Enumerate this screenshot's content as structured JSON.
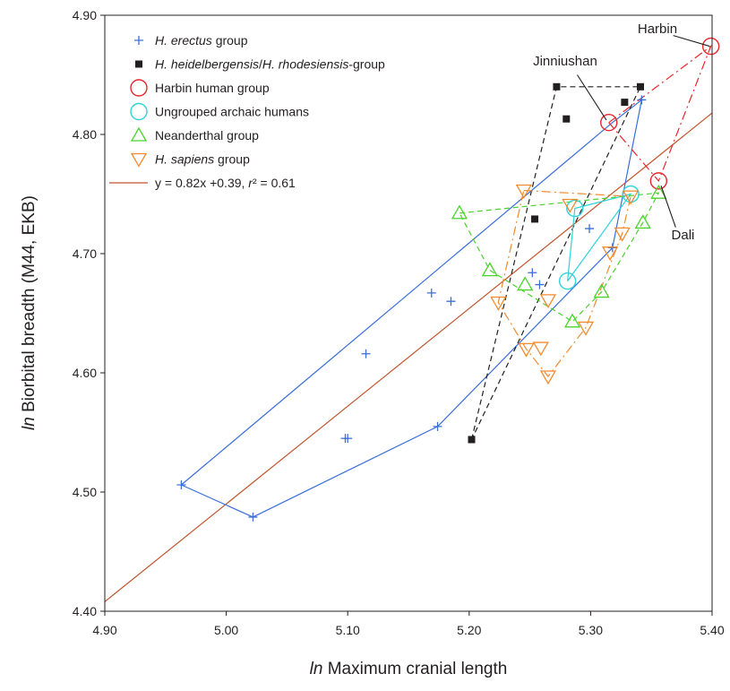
{
  "chart_data": {
    "type": "scatter",
    "xlabel_italic": "ln",
    "xlabel_rest": " Maximum cranial length",
    "ylabel_italic": "ln",
    "ylabel_rest": " Biorbital breadth (M44, EKB)",
    "xlim": [
      4.9,
      5.4
    ],
    "ylim": [
      4.4,
      4.9
    ],
    "x_ticks": [
      4.9,
      5.0,
      5.1,
      5.2,
      5.3,
      5.4
    ],
    "x_tick_labels": [
      "4.90",
      "5.00",
      "5.10",
      "5.20",
      "5.30",
      "5.40"
    ],
    "y_ticks": [
      4.4,
      4.5,
      4.6,
      4.7,
      4.8,
      4.9
    ],
    "y_tick_labels": [
      "4.40",
      "4.50",
      "4.60",
      "4.70",
      "4.80",
      "4.90"
    ],
    "grid": false,
    "legend_position": "top-left",
    "series": [
      {
        "name": "H. erectus group",
        "legend_parts": [
          {
            "t": "H. erectus",
            "i": true
          },
          {
            "t": " group",
            "i": false
          }
        ],
        "marker": "plus",
        "color": "#3a6fd8",
        "hull_style": "solid",
        "points": [
          [
            4.963,
            4.506
          ],
          [
            5.022,
            4.479
          ],
          [
            5.098,
            4.545
          ],
          [
            5.1,
            4.545
          ],
          [
            5.115,
            4.616
          ],
          [
            5.169,
            4.667
          ],
          [
            5.185,
            4.66
          ],
          [
            5.174,
            4.555
          ],
          [
            5.252,
            4.684
          ],
          [
            5.258,
            4.674
          ],
          [
            5.299,
            4.721
          ],
          [
            5.318,
            4.705
          ],
          [
            5.342,
            4.829
          ]
        ],
        "hull": [
          [
            4.963,
            4.506
          ],
          [
            5.022,
            4.479
          ],
          [
            5.174,
            4.555
          ],
          [
            5.318,
            4.705
          ],
          [
            5.342,
            4.829
          ],
          [
            5.318,
            4.81
          ],
          [
            4.963,
            4.506
          ]
        ]
      },
      {
        "name": "H. heidelbergensis/H. rhodesiensis-group",
        "legend_parts": [
          {
            "t": "H. heidelbergensis",
            "i": true
          },
          {
            "t": "/",
            "i": false
          },
          {
            "t": "H. rhodesiensis",
            "i": true
          },
          {
            "t": "-group",
            "i": false
          }
        ],
        "marker": "square",
        "color": "#231f20",
        "hull_style": "dashed",
        "points": [
          [
            5.202,
            4.544
          ],
          [
            5.254,
            4.729
          ],
          [
            5.272,
            4.84
          ],
          [
            5.28,
            4.813
          ],
          [
            5.328,
            4.827
          ],
          [
            5.341,
            4.84
          ]
        ],
        "hull": [
          [
            5.202,
            4.544
          ],
          [
            5.272,
            4.84
          ],
          [
            5.341,
            4.84
          ],
          [
            5.202,
            4.544
          ]
        ]
      },
      {
        "name": "Harbin human group",
        "legend_parts": [
          {
            "t": "Harbin human group",
            "i": false
          }
        ],
        "marker": "circle",
        "color": "#e8262c",
        "hull_style": "dashdot",
        "points": [
          [
            5.315,
            4.81
          ],
          [
            5.356,
            4.761
          ],
          [
            5.399,
            4.874
          ]
        ],
        "hull": [
          [
            5.315,
            4.81
          ],
          [
            5.399,
            4.874
          ],
          [
            5.356,
            4.761
          ],
          [
            5.315,
            4.81
          ]
        ]
      },
      {
        "name": "Ungrouped archaic humans",
        "legend_parts": [
          {
            "t": "Ungrouped archaic humans",
            "i": false
          }
        ],
        "marker": "circle",
        "color": "#2fd3d8",
        "hull_style": "solid",
        "points": [
          [
            5.281,
            4.677
          ],
          [
            5.287,
            4.738
          ],
          [
            5.333,
            4.75
          ]
        ],
        "hull": [
          [
            5.281,
            4.677
          ],
          [
            5.287,
            4.738
          ],
          [
            5.333,
            4.75
          ],
          [
            5.281,
            4.677
          ]
        ]
      },
      {
        "name": "Neanderthal group",
        "legend_parts": [
          {
            "t": "Neanderthal group",
            "i": false
          }
        ],
        "marker": "triangle-up",
        "color": "#49d32c",
        "hull_style": "dashed",
        "points": [
          [
            5.192,
            4.734
          ],
          [
            5.217,
            4.686
          ],
          [
            5.246,
            4.674
          ],
          [
            5.285,
            4.643
          ],
          [
            5.309,
            4.668
          ],
          [
            5.343,
            4.726
          ],
          [
            5.356,
            4.751
          ]
        ],
        "hull": [
          [
            5.192,
            4.734
          ],
          [
            5.356,
            4.751
          ],
          [
            5.343,
            4.726
          ],
          [
            5.309,
            4.668
          ],
          [
            5.285,
            4.643
          ],
          [
            5.217,
            4.686
          ],
          [
            5.192,
            4.734
          ]
        ]
      },
      {
        "name": "H. sapiens group",
        "legend_parts": [
          {
            "t": "H. sapiens",
            "i": true
          },
          {
            "t": " group",
            "i": false
          }
        ],
        "marker": "triangle-down",
        "color": "#f28a2e",
        "hull_style": "dashdot",
        "points": [
          [
            5.224,
            4.659
          ],
          [
            5.245,
            4.753
          ],
          [
            5.247,
            4.62
          ],
          [
            5.259,
            4.621
          ],
          [
            5.265,
            4.661
          ],
          [
            5.265,
            4.597
          ],
          [
            5.283,
            4.741
          ],
          [
            5.296,
            4.638
          ],
          [
            5.316,
            4.701
          ],
          [
            5.326,
            4.717
          ],
          [
            5.333,
            4.748
          ]
        ],
        "hull": [
          [
            5.245,
            4.753
          ],
          [
            5.333,
            4.748
          ],
          [
            5.326,
            4.717
          ],
          [
            5.296,
            4.638
          ],
          [
            5.265,
            4.597
          ],
          [
            5.247,
            4.62
          ],
          [
            5.224,
            4.659
          ],
          [
            5.245,
            4.753
          ]
        ]
      }
    ],
    "regression": {
      "label_parts": [
        {
          "t": "y = 0.82x +0.39, ",
          "i": false
        },
        {
          "t": "r",
          "i": true
        },
        {
          "t": "² = 0.61",
          "i": false
        }
      ],
      "slope": 0.82,
      "intercept": 0.39,
      "color": "#c0552e"
    },
    "annotations": [
      {
        "text": "Harbin",
        "text_at": [
          5.355,
          4.885
        ],
        "text_anchor": "middle",
        "line": [
          [
            5.368,
            4.883
          ],
          [
            5.398,
            4.874
          ]
        ]
      },
      {
        "text": "Jinniushan",
        "text_at": [
          5.279,
          4.858
        ],
        "text_anchor": "middle",
        "line": [
          [
            5.289,
            4.85
          ],
          [
            5.313,
            4.812
          ]
        ]
      },
      {
        "text": "Dali",
        "text_at": [
          5.376,
          4.712
        ],
        "text_anchor": "middle",
        "line": [
          [
            5.37,
            4.722
          ],
          [
            5.358,
            4.757
          ]
        ]
      }
    ]
  }
}
